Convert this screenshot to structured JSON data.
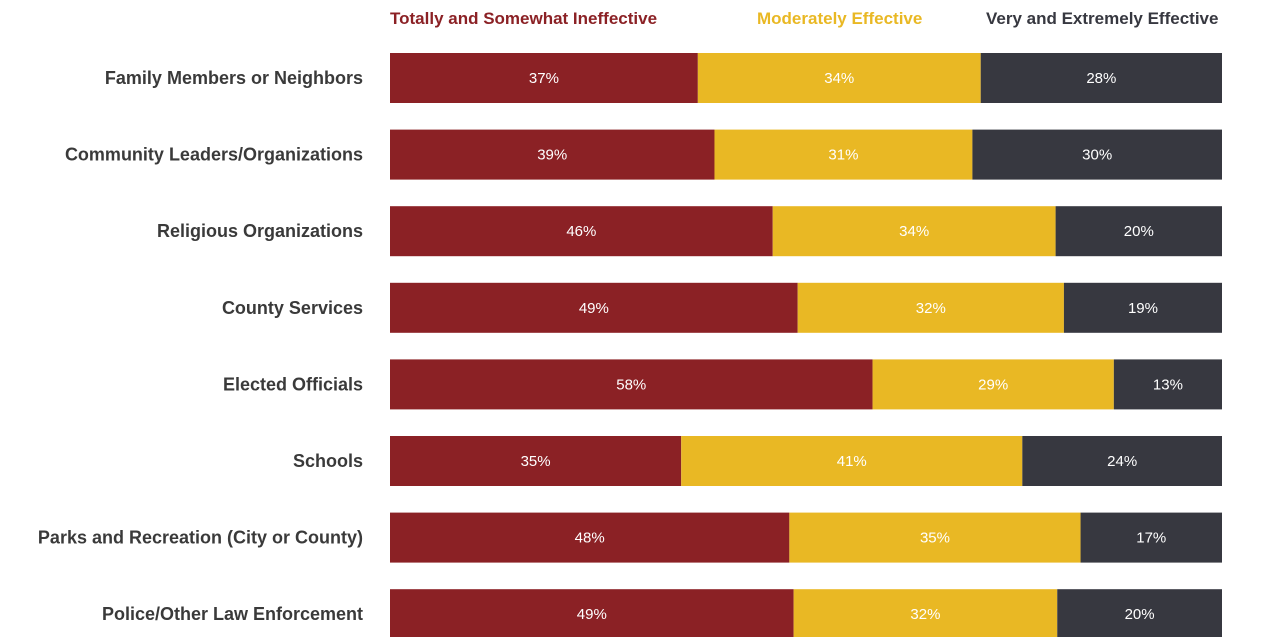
{
  "chart_data": {
    "type": "bar",
    "orientation": "horizontal",
    "stacked": true,
    "legend_position": "top",
    "grid": false,
    "xlim": [
      0,
      100
    ],
    "categories": [
      "Family Members or Neighbors",
      "Community Leaders/Organizations",
      "Religious Organizations",
      "County Services",
      "Elected Officials",
      "Schools",
      "Parks and Recreation (City or County)",
      "Police/Other Law Enforcement"
    ],
    "series": [
      {
        "name": "Totally and Somewhat Ineffective",
        "color": "#8b2125",
        "values": [
          37,
          39,
          46,
          49,
          58,
          35,
          48,
          49
        ],
        "labels": [
          "37%",
          "39%",
          "46%",
          "49%",
          "58%",
          "35%",
          "48%",
          "49%"
        ]
      },
      {
        "name": "Moderately Effective",
        "color": "#e9b824",
        "values": [
          34,
          31,
          34,
          32,
          29,
          41,
          35,
          32
        ],
        "labels": [
          "34%",
          "31%",
          "34%",
          "32%",
          "29%",
          "41%",
          "35%",
          "32%"
        ]
      },
      {
        "name": "Very and Extremely Effective",
        "color": "#373840",
        "values": [
          28,
          30,
          20,
          19,
          13,
          24,
          17,
          20
        ],
        "labels": [
          "28%",
          "30%",
          "20%",
          "19%",
          "13%",
          "24%",
          "17%",
          "20%"
        ]
      }
    ]
  }
}
